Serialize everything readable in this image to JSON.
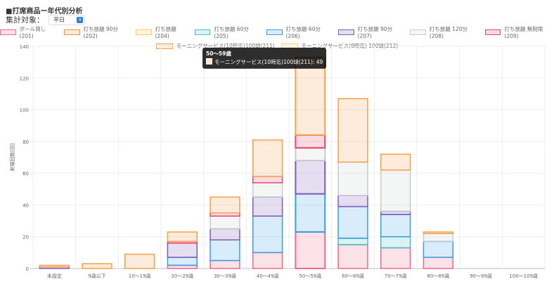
{
  "header": {
    "title": "■打席商品ー年代別分析",
    "filter_label": "集計対象：",
    "filter_value": "平日"
  },
  "tooltip": {
    "title": "50〜59歳",
    "label": "モーニングサービス(10時迄)100球(211): 49",
    "color": "#f7a045"
  },
  "chart_data": {
    "type": "bar",
    "stacked": true,
    "title": "",
    "xlabel": "",
    "ylabel": "来場回数[回]",
    "ylim": [
      0,
      140
    ],
    "yticks": [
      0,
      20,
      40,
      60,
      80,
      100,
      120,
      140
    ],
    "grid": true,
    "legend": "top",
    "categories": [
      "未設定",
      "9歳以下",
      "10〜19歳",
      "20〜29歳",
      "30〜39歳",
      "40〜49歳",
      "50〜59歳",
      "60〜69歳",
      "70〜79歳",
      "80〜89歳",
      "90〜99歳",
      "100〜109歳"
    ],
    "series": [
      {
        "name": "ボール貸し(201)",
        "color": "#ec6a8a",
        "values": [
          0,
          0,
          0,
          2,
          5,
          10,
          23,
          15,
          13,
          7,
          0,
          0
        ]
      },
      {
        "name": "打ち放題 90分(202)",
        "color": "#f0903a",
        "values": [
          0,
          0,
          0,
          0,
          0,
          0,
          0,
          0,
          0,
          0,
          0,
          0
        ]
      },
      {
        "name": "打ち放題(204)",
        "color": "#ffcd56",
        "values": [
          0,
          0,
          0,
          0,
          0,
          0,
          0,
          0,
          0,
          0,
          0,
          0
        ]
      },
      {
        "name": "打ち放題 60分(205)",
        "color": "#4bc0c0",
        "values": [
          0,
          0,
          0,
          0,
          0,
          0,
          0,
          4,
          7,
          0,
          0,
          0
        ]
      },
      {
        "name": "打ち放題 60分(206)",
        "color": "#3a9fe0",
        "values": [
          0,
          0,
          0,
          5,
          13,
          23,
          24,
          20,
          14,
          10,
          0,
          0
        ]
      },
      {
        "name": "打ち放題 90分(207)",
        "color": "#7e5cb8",
        "values": [
          1,
          0,
          0,
          9,
          7,
          12,
          21,
          7,
          2,
          0,
          0,
          0
        ]
      },
      {
        "name": "打ち放題 120分(208)",
        "color": "#c9cbcf",
        "values": [
          0,
          0,
          0,
          0,
          8,
          9,
          8,
          21,
          26,
          5,
          0,
          0
        ]
      },
      {
        "name": "打ち放題 無制限(209)",
        "color": "#e8456f",
        "values": [
          0,
          0,
          0,
          1,
          2,
          4,
          8,
          0,
          0,
          0,
          0,
          0
        ]
      },
      {
        "name": "モーニングサービス(10時迄)100球(211)",
        "color": "#f5a04a",
        "values": [
          1,
          3,
          9,
          6,
          10,
          23,
          49,
          40,
          10,
          1,
          0,
          0
        ]
      },
      {
        "name": "モーニングサービス(9時迄) 100球(212)",
        "color": "#ffd27a",
        "values": [
          0,
          0,
          0,
          0,
          0,
          0,
          0,
          0,
          0,
          0,
          0,
          0
        ]
      }
    ]
  }
}
